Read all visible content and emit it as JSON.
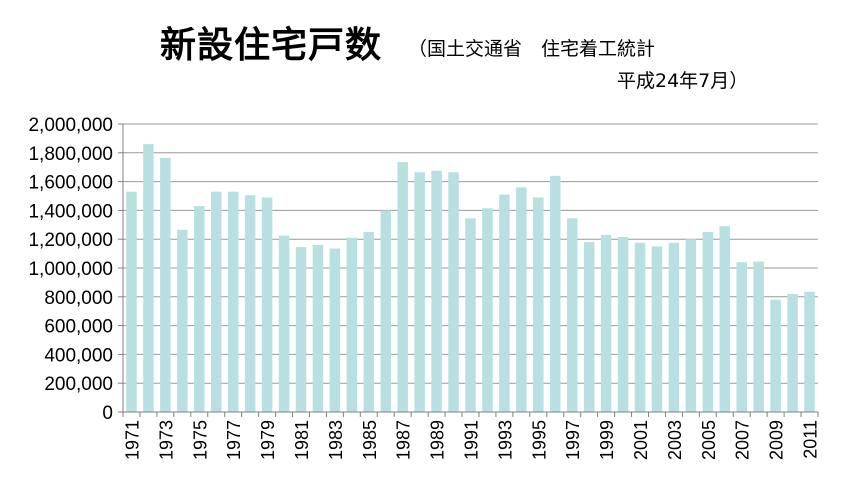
{
  "header": {
    "title": "新設住宅戸数",
    "subtitle_line1": "（国土交通省　住宅着工統計",
    "subtitle_line2": "平成24年7月）"
  },
  "chart_data": {
    "type": "bar",
    "categories": [
      "1971",
      "1972",
      "1973",
      "1974",
      "1975",
      "1976",
      "1977",
      "1978",
      "1979",
      "1980",
      "1981",
      "1982",
      "1983",
      "1984",
      "1985",
      "1986",
      "1987",
      "1988",
      "1989",
      "1990",
      "1991",
      "1992",
      "1993",
      "1994",
      "1995",
      "1996",
      "1997",
      "1998",
      "1999",
      "2000",
      "2001",
      "2002",
      "2003",
      "2004",
      "2005",
      "2006",
      "2007",
      "2008",
      "2009",
      "2010",
      "2011"
    ],
    "values": [
      1530000,
      1860000,
      1765000,
      1265000,
      1430000,
      1530000,
      1530000,
      1505000,
      1490000,
      1225000,
      1145000,
      1160000,
      1135000,
      1210000,
      1250000,
      1400000,
      1735000,
      1665000,
      1675000,
      1665000,
      1345000,
      1415000,
      1510000,
      1560000,
      1490000,
      1640000,
      1345000,
      1180000,
      1230000,
      1215000,
      1175000,
      1150000,
      1175000,
      1200000,
      1250000,
      1290000,
      1040000,
      1045000,
      780000,
      820000,
      835000
    ],
    "tick_labels": [
      "1971",
      "1973",
      "1975",
      "1977",
      "1979",
      "1981",
      "1983",
      "1985",
      "1987",
      "1989",
      "1991",
      "1993",
      "1995",
      "1997",
      "1999",
      "2001",
      "2003",
      "2005",
      "2007",
      "2009",
      "2011"
    ],
    "yticks": [
      "0",
      "200,000",
      "400,000",
      "600,000",
      "800,000",
      "1,000,000",
      "1,200,000",
      "1,400,000",
      "1,600,000",
      "1,800,000",
      "2,000,000"
    ],
    "ylim": [
      0,
      2000000
    ],
    "grid": true,
    "legend": "none",
    "bar_color": "#b8e0e0",
    "grid_color": "#999999"
  }
}
